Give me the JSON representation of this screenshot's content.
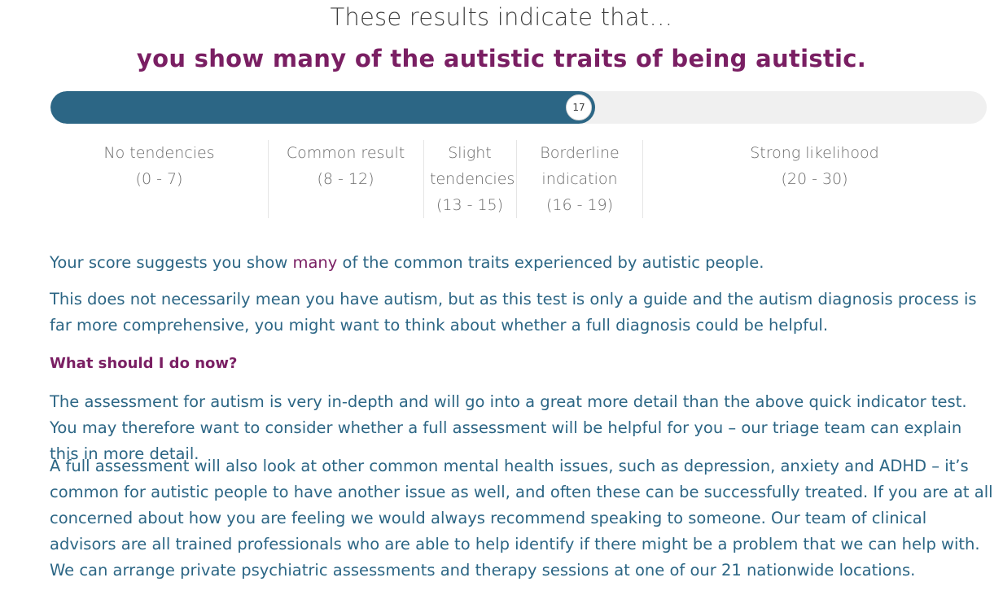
{
  "header": {
    "title": "These results indicate that…",
    "verdict": "you show many of the autistic traits of being autistic."
  },
  "score": {
    "value": "17",
    "min": 0,
    "max": 30,
    "fill_fraction": 0.58,
    "bar_color": "#2c6685",
    "track_color": "#f0f0f0"
  },
  "ranges": [
    {
      "label": "No tendencies",
      "range": "(0 - 7)"
    },
    {
      "label": "Common result",
      "range": "(8 - 12)"
    },
    {
      "label": "Slight tendencies",
      "range": "(13 - 15)"
    },
    {
      "label": "Borderline indication",
      "range": "(16 - 19)"
    },
    {
      "label": "Strong likelihood",
      "range": "(20 - 30)"
    }
  ],
  "body": {
    "p1_before": "Your score suggests you show ",
    "p1_highlight": "many",
    "p1_after": " of the common traits experienced by autistic people.",
    "p2": "This does not necessarily mean you have autism, but as this test is only a guide and the autism diagnosis process is far more comprehensive, you might want to think about whether a full diagnosis could be helpful.",
    "subheading": "What should I do now?",
    "p3": "The assessment for autism is very in-depth and will go into a great more detail than the above quick indicator test. You may therefore want to consider whether a full assessment will be helpful for you – our triage team can explain this in more detail.",
    "p4": "A full assessment will also look at other common mental health issues, such as depression, anxiety and ADHD – it’s common for autistic people to have another issue as well, and often these can be successfully treated. If you are at all concerned about how you are feeling we would always recommend speaking to someone. Our team of clinical advisors are all trained professionals who are able to help identify if there might be a problem that we can help with. We can arrange private psychiatric assessments and therapy sessions at one of our 21 nationwide locations."
  },
  "colors": {
    "accent": "#7a1f63",
    "text": "#2c6685"
  }
}
